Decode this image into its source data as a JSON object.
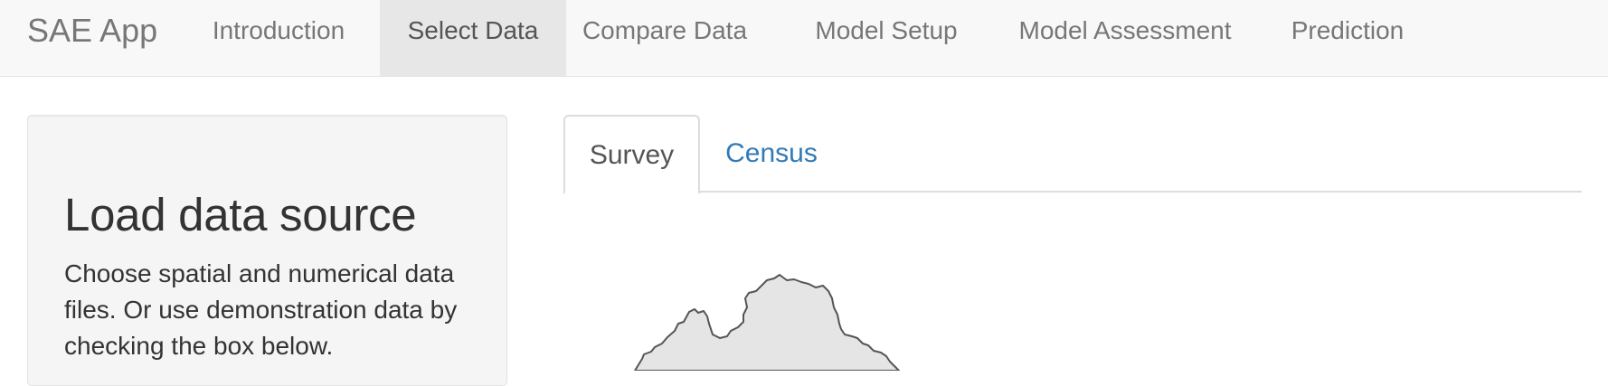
{
  "navbar": {
    "brand": "SAE App",
    "items": [
      {
        "label": "Introduction"
      },
      {
        "label": "Select Data"
      },
      {
        "label": "Compare Data"
      },
      {
        "label": "Model Setup"
      },
      {
        "label": "Model Assessment"
      },
      {
        "label": "Prediction"
      }
    ],
    "active_index": 1
  },
  "sidebar": {
    "title": "Load data source",
    "description": "Choose spatial and numerical data files. Or use demonstration data by checking the box below."
  },
  "tabs": {
    "items": [
      {
        "label": "Survey"
      },
      {
        "label": "Census"
      }
    ],
    "active_index": 0
  },
  "colors": {
    "navbar_bg": "#f8f8f8",
    "nav_active_bg": "#e7e7e7",
    "link": "#337ab7",
    "map_fill": "#e5e5e5",
    "map_stroke": "#555555"
  }
}
